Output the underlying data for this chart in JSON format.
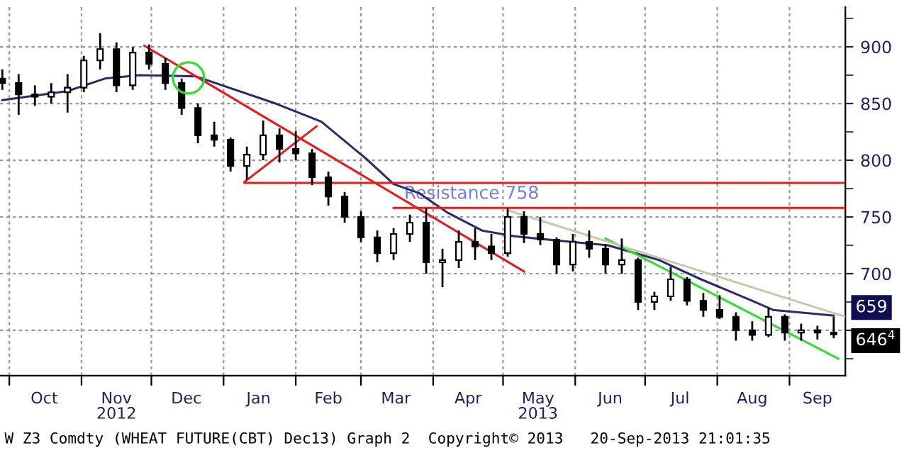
{
  "chart_data": {
    "type": "candlestick",
    "x": [
      "2012-09-28",
      "2012-10-05",
      "2012-10-12",
      "2012-10-19",
      "2012-10-26",
      "2012-11-02",
      "2012-11-09",
      "2012-11-16",
      "2012-11-23",
      "2012-11-30",
      "2012-12-07",
      "2012-12-14",
      "2012-12-21",
      "2012-12-28",
      "2013-01-04",
      "2013-01-11",
      "2013-01-18",
      "2013-01-25",
      "2013-02-01",
      "2013-02-08",
      "2013-02-15",
      "2013-02-22",
      "2013-03-01",
      "2013-03-08",
      "2013-03-15",
      "2013-03-22",
      "2013-03-29",
      "2013-04-05",
      "2013-04-12",
      "2013-04-19",
      "2013-04-26",
      "2013-05-03",
      "2013-05-10",
      "2013-05-17",
      "2013-05-24",
      "2013-05-31",
      "2013-06-07",
      "2013-06-14",
      "2013-06-21",
      "2013-06-28",
      "2013-07-05",
      "2013-07-12",
      "2013-07-19",
      "2013-07-26",
      "2013-08-02",
      "2013-08-09",
      "2013-08-16",
      "2013-08-23",
      "2013-08-30",
      "2013-09-06",
      "2013-09-13",
      "2013-09-20"
    ],
    "ohlc": [
      [
        872,
        880,
        862,
        868
      ],
      [
        868,
        876,
        840,
        858
      ],
      [
        858,
        866,
        848,
        856
      ],
      [
        856,
        868,
        850,
        860
      ],
      [
        860,
        876,
        842,
        864
      ],
      [
        864,
        892,
        860,
        888
      ],
      [
        888,
        912,
        880,
        898
      ],
      [
        898,
        904,
        860,
        866
      ],
      [
        866,
        900,
        862,
        895
      ],
      [
        895,
        902,
        880,
        885
      ],
      [
        885,
        890,
        862,
        868
      ],
      [
        868,
        872,
        840,
        846
      ],
      [
        846,
        850,
        815,
        822
      ],
      [
        822,
        834,
        812,
        818
      ],
      [
        818,
        820,
        790,
        795
      ],
      [
        795,
        812,
        783,
        805
      ],
      [
        805,
        835,
        800,
        822
      ],
      [
        822,
        828,
        798,
        810
      ],
      [
        810,
        826,
        800,
        806
      ],
      [
        806,
        810,
        778,
        785
      ],
      [
        785,
        790,
        760,
        768
      ],
      [
        768,
        772,
        745,
        750
      ],
      [
        750,
        755,
        728,
        732
      ],
      [
        732,
        738,
        710,
        718
      ],
      [
        718,
        740,
        712,
        735
      ],
      [
        735,
        752,
        728,
        745
      ],
      [
        745,
        758,
        700,
        710
      ],
      [
        710,
        722,
        688,
        712
      ],
      [
        712,
        738,
        705,
        728
      ],
      [
        728,
        740,
        712,
        724
      ],
      [
        724,
        735,
        712,
        718
      ],
      [
        718,
        758,
        715,
        750
      ],
      [
        750,
        755,
        727,
        735
      ],
      [
        735,
        750,
        725,
        730
      ],
      [
        730,
        732,
        700,
        708
      ],
      [
        708,
        735,
        702,
        728
      ],
      [
        728,
        738,
        714,
        722
      ],
      [
        722,
        726,
        700,
        708
      ],
      [
        708,
        731,
        700,
        712
      ],
      [
        712,
        714,
        668,
        675
      ],
      [
        675,
        684,
        668,
        680
      ],
      [
        680,
        706,
        676,
        695
      ],
      [
        695,
        697,
        672,
        676
      ],
      [
        676,
        683,
        662,
        668
      ],
      [
        668,
        681,
        660,
        662
      ],
      [
        662,
        666,
        641,
        650
      ],
      [
        650,
        658,
        641,
        646
      ],
      [
        646,
        670,
        644,
        662
      ],
      [
        662,
        664,
        641,
        648
      ],
      [
        648,
        656,
        641,
        650
      ],
      [
        650,
        654,
        642,
        648
      ],
      [
        648,
        662,
        643,
        646.5
      ]
    ],
    "series": [
      {
        "type": "line",
        "color": "#2b2b6b",
        "x": [
          "2012-09-28",
          "2012-10-26",
          "2012-11-11",
          "2012-11-26",
          "2012-12-20",
          "2013-01-22",
          "2013-02-12",
          "2013-03-04",
          "2013-03-15",
          "2013-03-26",
          "2013-04-07",
          "2013-04-22",
          "2013-05-06",
          "2013-05-25",
          "2013-06-15",
          "2013-07-07",
          "2013-07-25",
          "2013-08-15",
          "2013-08-25",
          "2013-09-20"
        ],
        "values": [
          853,
          861,
          872,
          875,
          874,
          851,
          834,
          800,
          779,
          771,
          754,
          738,
          733,
          729,
          725,
          712,
          695,
          677,
          668,
          663
        ]
      },
      {
        "type": "line",
        "color": "#e02020",
        "x": [
          "2012-11-28",
          "2013-05-10"
        ],
        "values": [
          901,
          702
        ]
      },
      {
        "type": "line",
        "color": "#e02020",
        "x": [
          "2013-01-10",
          "2013-02-10"
        ],
        "values": [
          781,
          830
        ]
      },
      {
        "type": "line",
        "color": "#e02020",
        "x": [
          "2013-01-10",
          "2013-09-25"
        ],
        "values": [
          780,
          780
        ]
      },
      {
        "type": "line",
        "color": "#e02020",
        "x": [
          "2013-03-15",
          "2013-09-25"
        ],
        "values": [
          758,
          758
        ]
      },
      {
        "type": "line",
        "color": "#33dd33",
        "x": [
          "2013-06-14",
          "2013-09-22"
        ],
        "values": [
          731,
          625
        ]
      },
      {
        "type": "line",
        "color": "#c8c8b0",
        "x": [
          "2013-05-03",
          "2013-09-25"
        ],
        "values": [
          756,
          662
        ]
      }
    ],
    "xlim": [
      "2012-09-27",
      "2013-09-25"
    ],
    "ylim": [
      610,
      935
    ],
    "xticks": [
      {
        "value": "2012-10-01",
        "label": null
      },
      {
        "value": "2012-10-16",
        "label": "Oct"
      },
      {
        "value": "2012-11-01",
        "label": null
      },
      {
        "value": "2012-11-16",
        "label": "Nov\n2012"
      },
      {
        "value": "2012-12-01",
        "label": null
      },
      {
        "value": "2012-12-16",
        "label": "Dec"
      },
      {
        "value": "2013-01-01",
        "label": null
      },
      {
        "value": "2013-01-16",
        "label": "Jan"
      },
      {
        "value": "2013-02-01",
        "label": null
      },
      {
        "value": "2013-02-15",
        "label": "Feb"
      },
      {
        "value": "2013-03-01",
        "label": null
      },
      {
        "value": "2013-03-16",
        "label": "Mar"
      },
      {
        "value": "2013-04-01",
        "label": null
      },
      {
        "value": "2013-04-16",
        "label": "Apr"
      },
      {
        "value": "2013-05-01",
        "label": null
      },
      {
        "value": "2013-05-16",
        "label": "May\n2013"
      },
      {
        "value": "2013-06-01",
        "label": null
      },
      {
        "value": "2013-06-16",
        "label": "Jun"
      },
      {
        "value": "2013-07-01",
        "label": null
      },
      {
        "value": "2013-07-16",
        "label": "Jul"
      },
      {
        "value": "2013-08-01",
        "label": null
      },
      {
        "value": "2013-08-16",
        "label": "Aug"
      },
      {
        "value": "2013-09-01",
        "label": null
      },
      {
        "value": "2013-09-13",
        "label": "Sep"
      }
    ],
    "yticks": [
      {
        "value": 650,
        "label": null
      },
      700,
      750,
      800,
      850,
      900
    ],
    "grid": true,
    "annotations": [
      "Resistance 758",
      "659",
      "646$^{4}$",
      "W Z3 Comdty (WHEAT FUTURE(CBT) Dec13) Graph 2  Copyright© 2013   20-Sep-2013 21:01:35"
    ]
  }
}
